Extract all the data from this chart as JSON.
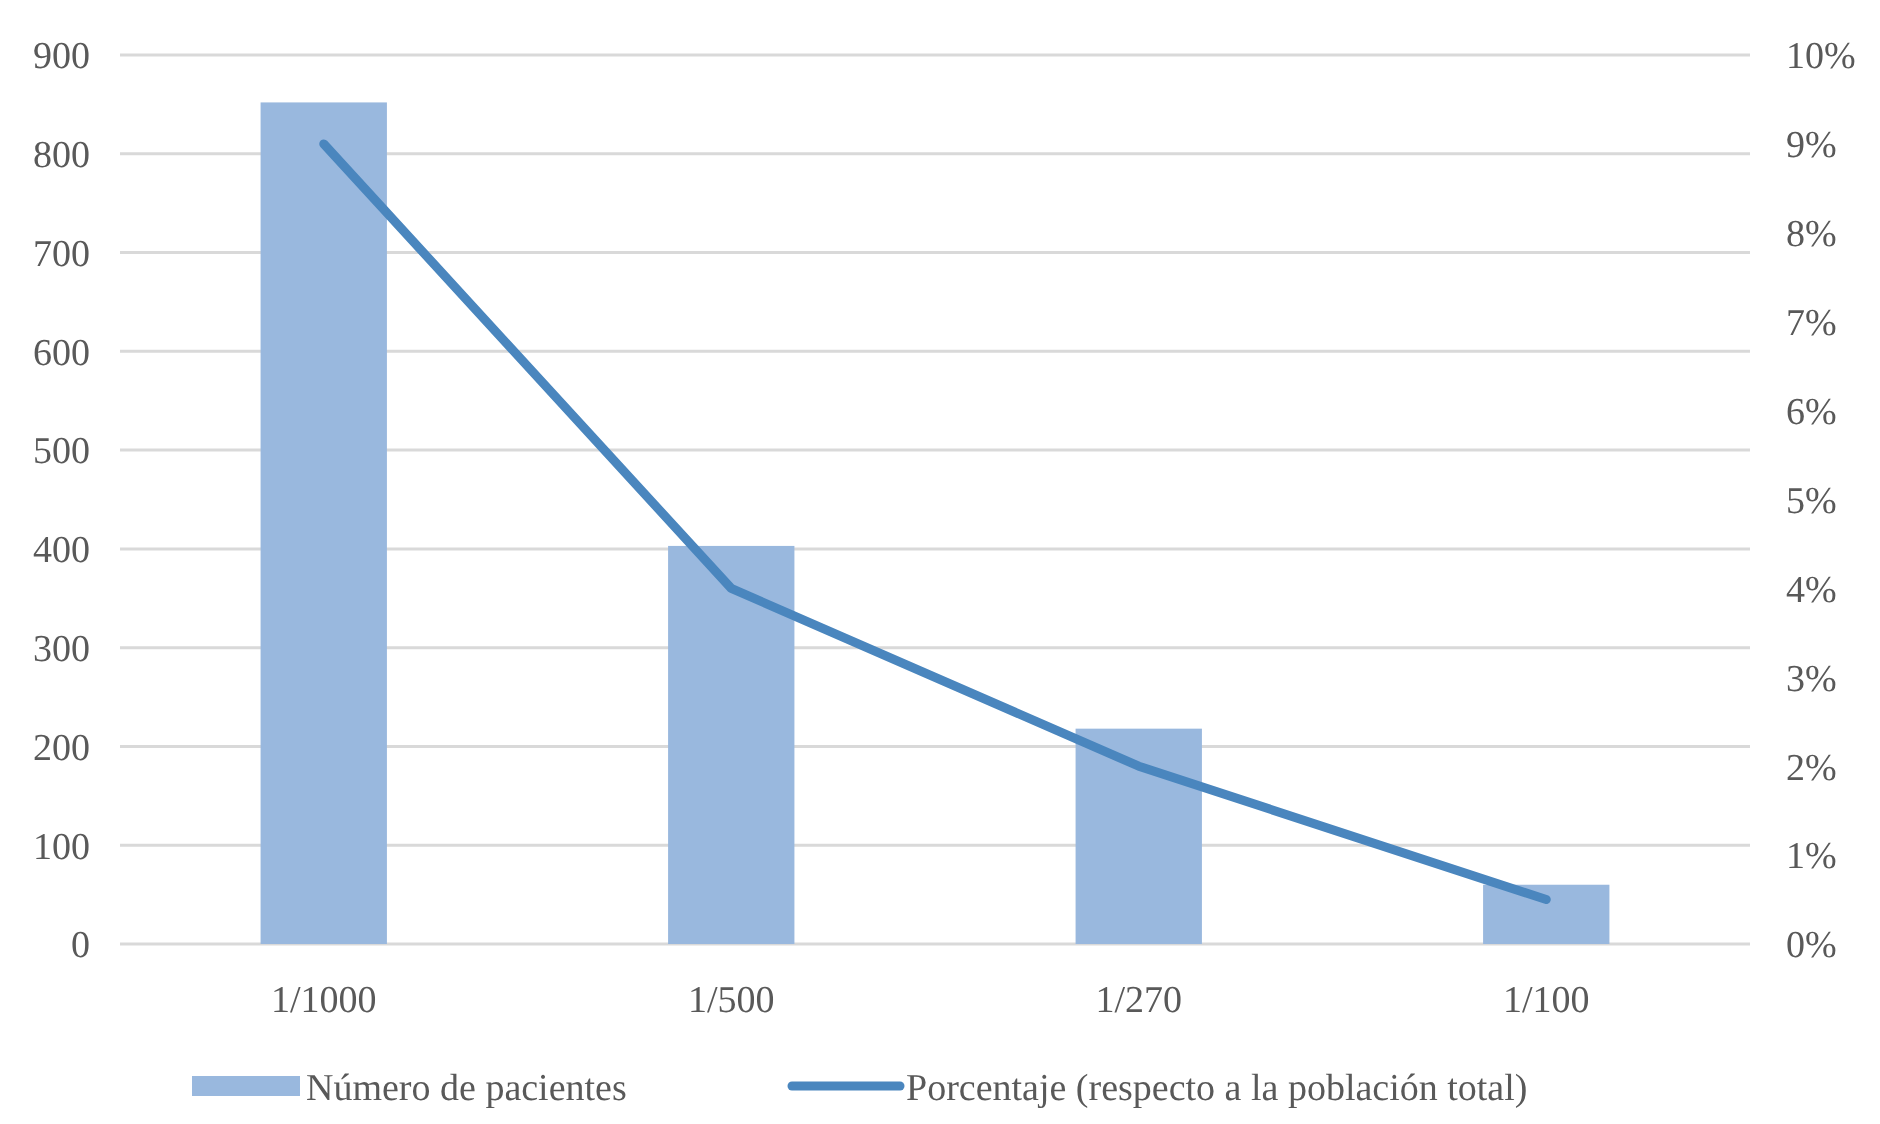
{
  "chart_data": {
    "type": "bar",
    "categories": [
      "1/1000",
      "1/500",
      "1/270",
      "1/100"
    ],
    "series": [
      {
        "name": "Número de pacientes",
        "color": "#99b8de",
        "values": [
          852,
          403,
          218,
          60
        ]
      },
      {
        "name": "Porcentaje (respecto a la población total)",
        "type": "line",
        "axis": "y2",
        "color": "#4a86be",
        "values": [
          9.0,
          4.0,
          2.0,
          0.5
        ]
      }
    ],
    "ylim": [
      0,
      900
    ],
    "yticks": [
      0,
      100,
      200,
      300,
      400,
      500,
      600,
      700,
      800,
      900
    ],
    "y2lim": [
      0,
      10
    ],
    "y2ticks": [
      {
        "value": 0,
        "label": "0%"
      },
      {
        "value": 1,
        "label": "1%"
      },
      {
        "value": 2,
        "label": "2%"
      },
      {
        "value": 3,
        "label": "3%"
      },
      {
        "value": 4,
        "label": "4%"
      },
      {
        "value": 5,
        "label": "5%"
      },
      {
        "value": 6,
        "label": "6%"
      },
      {
        "value": 7,
        "label": "7%"
      },
      {
        "value": 8,
        "label": "8%"
      },
      {
        "value": 9,
        "label": "9%"
      },
      {
        "value": 10,
        "label": "10%"
      }
    ],
    "grid": "y",
    "legend": "bottom",
    "marker": "none"
  }
}
